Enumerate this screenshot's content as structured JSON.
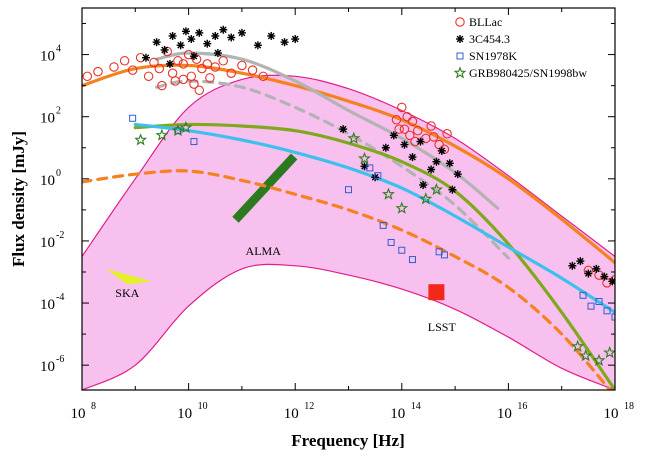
{
  "chart_data": {
    "type": "scatter",
    "title": "",
    "xlabel": "Frequency [Hz]",
    "ylabel": "Flux density [mJy]",
    "xscale": "log",
    "yscale": "log",
    "xlim_log10": [
      8,
      18
    ],
    "ylim_log10": [
      -6.8,
      5.5
    ],
    "x_ticks": [
      {
        "base": "10",
        "exp": "8"
      },
      {
        "base": "10",
        "exp": "10"
      },
      {
        "base": "10",
        "exp": "12"
      },
      {
        "base": "10",
        "exp": "14"
      },
      {
        "base": "10",
        "exp": "16"
      },
      {
        "base": "10",
        "exp": "18"
      }
    ],
    "y_ticks": [
      {
        "base": "10",
        "exp": "4"
      },
      {
        "base": "10",
        "exp": "2"
      },
      {
        "base": "10",
        "exp": "0"
      },
      {
        "base": "10",
        "exp": "-2"
      },
      {
        "base": "10",
        "exp": "-4"
      },
      {
        "base": "10",
        "exp": "-6"
      }
    ],
    "x_tick_values": [
      8,
      10,
      12,
      14,
      16,
      18
    ],
    "y_tick_values": [
      4,
      2,
      0,
      -2,
      -4,
      -6
    ],
    "legend_position": "top-right",
    "legend": [
      {
        "label": "BLLac",
        "marker": "circle",
        "color": "#e8322a"
      },
      {
        "label": "3C454.3",
        "marker": "asterisk",
        "color": "#000000"
      },
      {
        "label": "SN1978K",
        "marker": "square",
        "color": "#2f5fd0"
      },
      {
        "label": "GRB980425/SN1998bw",
        "marker": "star",
        "color": "#2e7d1e"
      }
    ],
    "colors": {
      "bllac": "#e8322a",
      "c3c454": "#000000",
      "sn1978k": "#2f5fd0",
      "grb": "#2e7d1e",
      "orange": "#f58220",
      "gray": "#b3b3b3",
      "olive": "#7fa81c",
      "cyan": "#3cc0ec",
      "band_fill": "#f7b9ec",
      "band_edge": "#e0208a",
      "alma": "#2b7a1e",
      "ska": "#e4f227",
      "lsst": "#f2281b"
    },
    "curves": [
      {
        "name": "orange-solid",
        "color": "#f58220",
        "dash": false,
        "points": [
          [
            8,
            3.0
          ],
          [
            9,
            3.55
          ],
          [
            10,
            3.65
          ],
          [
            11,
            3.4
          ],
          [
            12,
            3.0
          ],
          [
            13,
            2.5
          ],
          [
            14,
            1.9
          ],
          [
            15,
            1.05
          ],
          [
            16,
            0.0
          ],
          [
            17,
            -1.3
          ],
          [
            18,
            -2.7
          ]
        ]
      },
      {
        "name": "orange-dashed",
        "color": "#f58220",
        "dash": true,
        "points": [
          [
            8,
            -0.1
          ],
          [
            9,
            0.15
          ],
          [
            10,
            0.25
          ],
          [
            11,
            -0.05
          ],
          [
            12,
            -0.5
          ],
          [
            13,
            -1.0
          ],
          [
            14,
            -1.65
          ],
          [
            15,
            -2.5
          ],
          [
            16,
            -3.5
          ],
          [
            17,
            -5.0
          ],
          [
            18,
            -7.0
          ]
        ]
      },
      {
        "name": "gray-solid",
        "color": "#b3b3b3",
        "dash": false,
        "points": [
          [
            9.4,
            3.85
          ],
          [
            10,
            4.05
          ],
          [
            11,
            3.85
          ],
          [
            12,
            3.15
          ],
          [
            13,
            2.2
          ],
          [
            14,
            1.3
          ],
          [
            15,
            0.2
          ],
          [
            15.8,
            -0.95
          ]
        ]
      },
      {
        "name": "gray-dashed",
        "color": "#b3b3b3",
        "dash": true,
        "points": [
          [
            9.4,
            2.95
          ],
          [
            10,
            3.15
          ],
          [
            11,
            2.95
          ],
          [
            12,
            2.3
          ],
          [
            13,
            1.45
          ],
          [
            14,
            0.4
          ],
          [
            15,
            -0.85
          ],
          [
            16,
            -2.55
          ]
        ]
      },
      {
        "name": "olive-solid",
        "color": "#7fa81c",
        "dash": false,
        "points": [
          [
            9,
            1.65
          ],
          [
            10,
            1.75
          ],
          [
            11,
            1.7
          ],
          [
            12,
            1.55
          ],
          [
            13,
            1.15
          ],
          [
            14,
            0.55
          ],
          [
            15,
            -0.4
          ],
          [
            16,
            -2.1
          ],
          [
            17,
            -4.3
          ],
          [
            18,
            -6.8
          ]
        ]
      },
      {
        "name": "cyan-solid",
        "color": "#3cc0ec",
        "dash": false,
        "points": [
          [
            9,
            1.75
          ],
          [
            10,
            1.55
          ],
          [
            11,
            1.25
          ],
          [
            12,
            0.85
          ],
          [
            13,
            0.35
          ],
          [
            14,
            -0.3
          ],
          [
            15,
            -1.2
          ],
          [
            16,
            -2.2
          ],
          [
            17,
            -3.2
          ],
          [
            18,
            -4.3
          ]
        ]
      }
    ],
    "band": {
      "upper": [
        [
          8,
          -2.5
        ],
        [
          9,
          0.0
        ],
        [
          10,
          2.3
        ],
        [
          11,
          3.2
        ],
        [
          12,
          3.3
        ],
        [
          13,
          2.9
        ],
        [
          14,
          2.2
        ],
        [
          15,
          1.3
        ],
        [
          16,
          0.1
        ],
        [
          17,
          -1.2
        ],
        [
          18,
          -2.5
        ]
      ],
      "lower": [
        [
          8,
          -6.8
        ],
        [
          9,
          -6.0
        ],
        [
          10,
          -4.1
        ],
        [
          11,
          -2.9
        ],
        [
          12,
          -2.8
        ],
        [
          13,
          -3.1
        ],
        [
          14,
          -3.55
        ],
        [
          15,
          -4.2
        ],
        [
          16,
          -5.1
        ],
        [
          17,
          -6.1
        ],
        [
          18,
          -6.8
        ]
      ]
    },
    "annotations": [
      {
        "label": "ALMA",
        "x": 11.4,
        "y": -2.45
      },
      {
        "label": "SKA",
        "x": 8.85,
        "y": -3.8
      },
      {
        "label": "LSST",
        "x": 14.75,
        "y": -4.9
      }
    ],
    "instrument_regions": [
      {
        "name": "ALMA",
        "from": [
          10.88,
          -1.32
        ],
        "to": [
          11.98,
          0.72
        ],
        "width_dex": 0.55,
        "color": "#2b7a1e"
      },
      {
        "name": "SKA",
        "points": [
          [
            8.45,
            -2.9
          ],
          [
            9.3,
            -3.3
          ],
          [
            8.85,
            -3.4
          ]
        ],
        "color": "#e4f227"
      },
      {
        "name": "LSST",
        "x": 14.65,
        "y": -3.65,
        "color": "#f2281b"
      }
    ],
    "series": [
      {
        "name": "BLLac",
        "marker": "circle",
        "color": "#e8322a",
        "x": [
          8.1,
          8.3,
          8.6,
          8.8,
          8.95,
          9.1,
          9.25,
          9.35,
          9.45,
          9.6,
          9.7,
          9.8,
          9.9,
          10.0,
          10.05,
          10.15,
          10.25,
          10.35,
          10.5,
          10.65,
          10.8,
          11.0,
          11.2,
          11.4,
          9.5,
          9.75,
          10.1,
          10.4,
          10.2,
          9.9,
          13.9,
          14.0,
          14.05,
          14.1,
          14.15,
          14.2,
          14.3,
          14.45,
          14.55,
          14.7,
          14.85,
          13.95,
          14.25,
          14.6,
          14.8,
          17.5,
          17.7,
          17.85,
          18.0
        ],
        "y": [
          3.3,
          3.45,
          3.6,
          3.8,
          3.5,
          3.9,
          3.3,
          3.75,
          3.55,
          4.1,
          3.4,
          3.8,
          3.7,
          4.0,
          3.3,
          3.85,
          3.55,
          3.7,
          3.6,
          3.8,
          3.4,
          3.65,
          3.5,
          3.3,
          3.0,
          3.15,
          3.05,
          3.25,
          2.85,
          3.2,
          1.9,
          2.3,
          1.6,
          2.0,
          1.4,
          1.85,
          1.55,
          1.3,
          1.7,
          1.1,
          1.45,
          1.6,
          1.2,
          1.35,
          0.95,
          -2.95,
          -3.1,
          -3.35,
          -3.25
        ]
      },
      {
        "name": "3C454.3",
        "marker": "asterisk",
        "color": "#000000",
        "x": [
          9.2,
          9.4,
          9.55,
          9.7,
          9.85,
          9.95,
          10.05,
          10.2,
          10.35,
          10.5,
          10.65,
          10.8,
          11.0,
          11.3,
          11.55,
          11.8,
          12.0,
          9.65,
          10.1,
          10.55,
          12.9,
          13.3,
          13.7,
          13.85,
          14.05,
          14.2,
          14.35,
          14.55,
          14.75,
          14.9,
          15.05,
          13.5,
          14.4,
          14.65,
          14.95,
          17.2,
          17.35,
          17.5,
          17.65,
          17.8,
          17.95
        ],
        "y": [
          3.9,
          4.4,
          4.15,
          4.6,
          4.3,
          4.75,
          4.5,
          4.7,
          4.35,
          4.6,
          4.8,
          4.55,
          4.7,
          4.3,
          4.6,
          4.4,
          4.5,
          3.7,
          3.95,
          4.05,
          1.6,
          0.4,
          1.0,
          1.4,
          1.1,
          0.7,
          1.2,
          0.3,
          0.9,
          0.5,
          0.15,
          0.05,
          -0.2,
          0.55,
          -0.35,
          -2.8,
          -2.65,
          -3.05,
          -2.9,
          -3.15,
          -3.3
        ]
      },
      {
        "name": "SN1978K",
        "marker": "square",
        "color": "#2f5fd0",
        "x": [
          8.95,
          9.8,
          10.1,
          13.0,
          13.4,
          13.55,
          13.65,
          13.8,
          14.0,
          14.2,
          14.7,
          14.8,
          17.4,
          17.55,
          17.7,
          17.85,
          18.0
        ],
        "y": [
          1.95,
          1.55,
          1.2,
          -0.35,
          0.35,
          0.1,
          -1.5,
          -2.05,
          -2.3,
          -2.6,
          -2.35,
          -2.45,
          -3.75,
          -4.1,
          -3.95,
          -4.25,
          -4.45
        ]
      },
      {
        "name": "GRB980425/SN1998bw",
        "marker": "star",
        "color": "#2e7d1e",
        "x": [
          9.1,
          9.5,
          9.8,
          9.95,
          13.1,
          13.3,
          13.75,
          14.0,
          14.45,
          14.65,
          17.3,
          17.45,
          17.7,
          17.9
        ],
        "y": [
          1.25,
          1.4,
          1.55,
          1.65,
          1.3,
          0.65,
          -0.5,
          -0.95,
          -0.65,
          -0.35,
          -5.4,
          -5.7,
          -5.85,
          -5.6
        ]
      }
    ]
  }
}
